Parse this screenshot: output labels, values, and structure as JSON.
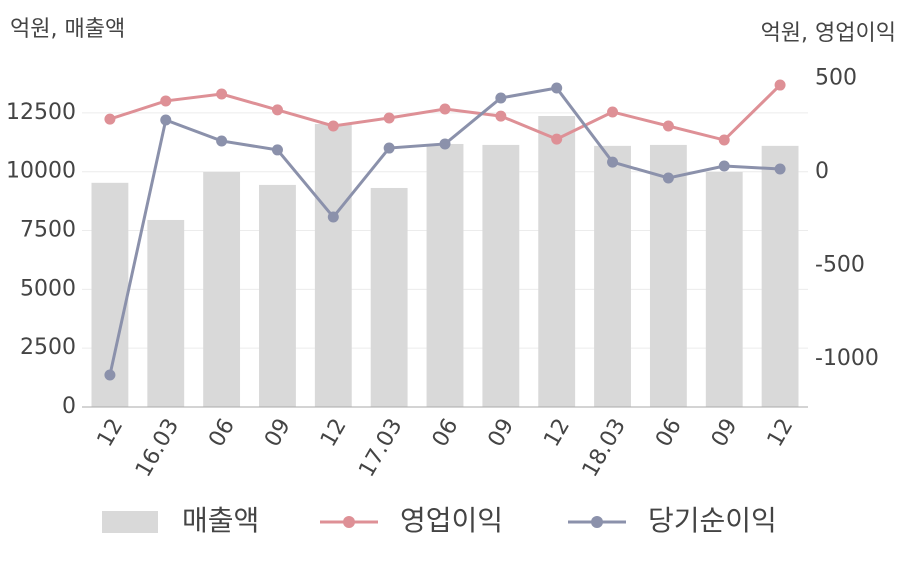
{
  "chart_data": {
    "type": "bar-line",
    "y_axis_label": "억원, 매출액",
    "y2_axis_label": "억원, 영업이익",
    "categories": [
      "12",
      "16.03",
      "06",
      "09",
      "12",
      "17.03",
      "06",
      "09",
      "12",
      "18.03",
      "06",
      "09",
      "12"
    ],
    "series": [
      {
        "name": "매출액",
        "type": "bar",
        "color": "#d9d9d9",
        "values": [
          9530,
          7950,
          9990,
          9440,
          12030,
          9310,
          11180,
          11140,
          12370,
          11100,
          11140,
          9990,
          11100
        ]
      },
      {
        "name": "영업이익",
        "type": "line",
        "axis": "y2",
        "color": "#de9096",
        "values": [
          283,
          380,
          417,
          332,
          246,
          289,
          337,
          299,
          176,
          321,
          246,
          171,
          465
        ]
      },
      {
        "name": "당기순이익",
        "type": "line",
        "axis": "y2",
        "color": "#8b91ab",
        "values": [
          -1086,
          278,
          166,
          118,
          -241,
          128,
          150,
          396,
          449,
          53,
          -32,
          32,
          16
        ]
      }
    ],
    "ylim": [
      0,
      14750
    ],
    "yticks": [
      0,
      2500,
      5000,
      7500,
      10000,
      12500
    ],
    "y2lim": [
      -1257,
      599
    ],
    "y2ticks": [
      -1000,
      -500,
      0,
      500
    ],
    "grid": true,
    "legend": "bottom"
  }
}
